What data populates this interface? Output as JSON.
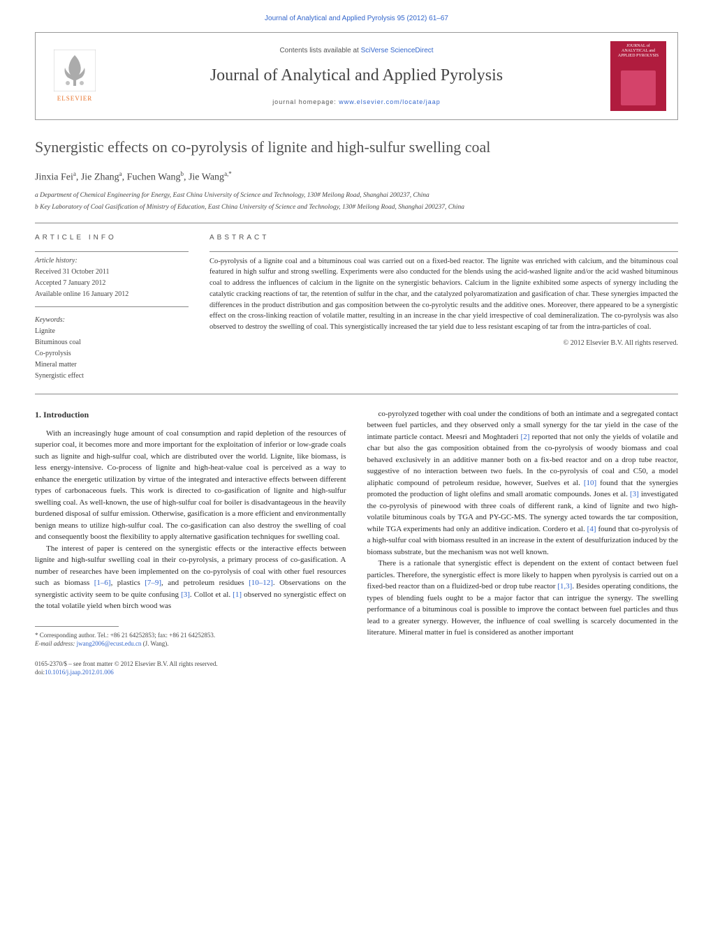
{
  "top_citation": "Journal of Analytical and Applied Pyrolysis 95 (2012) 61–67",
  "header": {
    "contents_prefix": "Contents lists available at ",
    "contents_link": "SciVerse ScienceDirect",
    "journal_title": "Journal of Analytical and Applied Pyrolysis",
    "homepage_prefix": "journal homepage: ",
    "homepage_url": "www.elsevier.com/locate/jaap",
    "elsevier_label": "ELSEVIER",
    "cover_text": "JOURNAL of ANALYTICAL and APPLIED PYROLYSIS"
  },
  "article": {
    "title": "Synergistic effects on co-pyrolysis of lignite and high-sulfur swelling coal",
    "authors_html": "Jinxia Fei<sup>a</sup>, Jie Zhang<sup>a</sup>, Fuchen Wang<sup>b</sup>, Jie Wang<sup>a,*</sup>",
    "affiliations": [
      "a Department of Chemical Engineering for Energy, East China University of Science and Technology, 130# Meilong Road, Shanghai 200237, China",
      "b Key Laboratory of Coal Gasification of Ministry of Education, East China University of Science and Technology, 130# Meilong Road, Shanghai 200237, China"
    ]
  },
  "info": {
    "section_label": "ARTICLE INFO",
    "history_label": "Article history:",
    "history": [
      "Received 31 October 2011",
      "Accepted 7 January 2012",
      "Available online 16 January 2012"
    ],
    "keywords_label": "Keywords:",
    "keywords": [
      "Lignite",
      "Bituminous coal",
      "Co-pyrolysis",
      "Mineral matter",
      "Synergistic effect"
    ]
  },
  "abstract": {
    "section_label": "ABSTRACT",
    "text": "Co-pyrolysis of a lignite coal and a bituminous coal was carried out on a fixed-bed reactor. The lignite was enriched with calcium, and the bituminous coal featured in high sulfur and strong swelling. Experiments were also conducted for the blends using the acid-washed lignite and/or the acid washed bituminous coal to address the influences of calcium in the lignite on the synergistic behaviors. Calcium in the lignite exhibited some aspects of synergy including the catalytic cracking reactions of tar, the retention of sulfur in the char, and the catalyzed polyaromatization and gasification of char. These synergies impacted the differences in the product distribution and gas composition between the co-pyrolytic results and the additive ones. Moreover, there appeared to be a synergistic effect on the cross-linking reaction of volatile matter, resulting in an increase in the char yield irrespective of coal demineralization. The co-pyrolysis was also observed to destroy the swelling of coal. This synergistically increased the tar yield due to less resistant escaping of tar from the intra-particles of coal.",
    "copyright": "© 2012 Elsevier B.V. All rights reserved."
  },
  "body": {
    "section_heading": "1. Introduction",
    "left_paragraphs": [
      "With an increasingly huge amount of coal consumption and rapid depletion of the resources of superior coal, it becomes more and more important for the exploitation of inferior or low-grade coals such as lignite and high-sulfur coal, which are distributed over the world. Lignite, like biomass, is less energy-intensive. Co-process of lignite and high-heat-value coal is perceived as a way to enhance the energetic utilization by virtue of the integrated and interactive effects between different types of carbonaceous fuels. This work is directed to co-gasification of lignite and high-sulfur swelling coal. As well-known, the use of high-sulfur coal for boiler is disadvantageous in the heavily burdened disposal of sulfur emission. Otherwise, gasification is a more efficient and environmentally benign means to utilize high-sulfur coal. The co-gasification can also destroy the swelling of coal and consequently boost the flexibility to apply alternative gasification techniques for swelling coal.",
      "The interest of paper is centered on the synergistic effects or the interactive effects between lignite and high-sulfur swelling coal in their co-pyrolysis, a primary process of co-gasification. A number of researches have been implemented on the co-pyrolysis of coal with other fuel resources such as biomass [1–6], plastics [7–9], and petroleum residues [10–12]. Observations on the synergistic activity seem to be quite confusing [3]. Collot et al. [1] observed no synergistic effect on the total volatile yield when birch wood was"
    ],
    "right_paragraphs": [
      "co-pyrolyzed together with coal under the conditions of both an intimate and a segregated contact between fuel particles, and they observed only a small synergy for the tar yield in the case of the intimate particle contact. Meesri and Moghtaderi [2] reported that not only the yields of volatile and char but also the gas composition obtained from the co-pyrolysis of woody biomass and coal behaved exclusively in an additive manner both on a fix-bed reactor and on a drop tube reactor, suggestive of no interaction between two fuels. In the co-pyrolysis of coal and C50, a model aliphatic compound of petroleum residue, however, Suelves et al. [10] found that the synergies promoted the production of light olefins and small aromatic compounds. Jones et al. [3] investigated the co-pyrolysis of pinewood with three coals of different rank, a kind of lignite and two high-volatile bituminous coals by TGA and PY-GC-MS. The synergy acted towards the tar composition, while TGA experiments had only an additive indication. Cordero et al. [4] found that co-pyrolysis of a high-sulfur coal with biomass resulted in an increase in the extent of desulfurization induced by the biomass substrate, but the mechanism was not well known.",
      "There is a rationale that synergistic effect is dependent on the extent of contact between fuel particles. Therefore, the synergistic effect is more likely to happen when pyrolysis is carried out on a fixed-bed reactor than on a fluidized-bed or drop tube reactor [1,3]. Besides operating conditions, the types of blending fuels ought to be a major factor that can intrigue the synergy. The swelling performance of a bituminous coal is possible to improve the contact between fuel particles and thus lead to a greater synergy. However, the influence of coal swelling is scarcely documented in the literature. Mineral matter in fuel is considered as another important"
    ]
  },
  "footnote": {
    "corresponding": "* Corresponding author. Tel.: +86 21 64252853; fax: +86 21 64252853.",
    "email_label": "E-mail address: ",
    "email": "jwang2006@ecust.edu.cn",
    "email_suffix": " (J. Wang)."
  },
  "bottom": {
    "issn_line": "0165-2370/$ – see front matter © 2012 Elsevier B.V. All rights reserved.",
    "doi_prefix": "doi:",
    "doi": "10.1016/j.jaap.2012.01.006"
  },
  "colors": {
    "link": "#3366cc",
    "elsevier_orange": "#e8732c",
    "cover_bg": "#b01c3e",
    "text": "#2a2a2a",
    "divider": "#888888"
  }
}
